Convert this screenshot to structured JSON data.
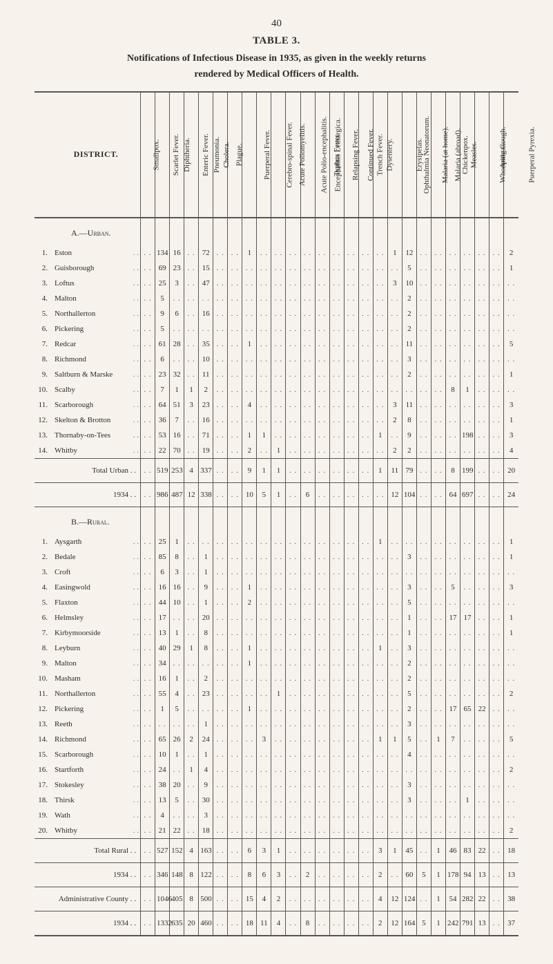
{
  "meta": {
    "page_number": "40",
    "table_label": "TABLE 3.",
    "title_line1": "Notifications of Infectious Disease in 1935, as given in the weekly returns",
    "title_line2": "rendered by Medical Officers of Health.",
    "district_head": "DISTRICT."
  },
  "columns": [
    "Smallpox.",
    "Scarlet Fever.",
    "Diphtheria.",
    "Enteric Fever.",
    "Pneumonia.",
    "Cholera.",
    "Plague.",
    "Puerperal Fever.",
    "Cerebro-spinal Fever.",
    "Acute Poliomyelitis.",
    "Acute Polio-encephalitis.",
    "Encephalitis Lethargica.",
    "Typhus Fever.",
    "Relapsing Fever.",
    "Continued Fever.",
    "Trench Fever.",
    "Dysentery.",
    "Ophthalmia Neonatorum.",
    "Erysipelas.",
    "Malaria (at home).",
    "Malaria (abroad).",
    "Chickenpox.",
    "Measles.",
    "Whooping Cough.",
    "Anthrax.",
    "Puerperal Pyrexia."
  ],
  "section_a": {
    "heading": "A.—Urban.",
    "rows": [
      {
        "n": "1.",
        "name": "Eston",
        "v": [
          "",
          "134",
          "16",
          "",
          "72",
          "",
          "",
          "1",
          "",
          "",
          "",
          "",
          "",
          "",
          "",
          "",
          "",
          "1",
          "12",
          "",
          "",
          "",
          "",
          "",
          "",
          "2"
        ]
      },
      {
        "n": "2.",
        "name": "Guisborough",
        "v": [
          "",
          "69",
          "23",
          "",
          "15",
          "",
          "",
          "",
          "",
          "",
          "",
          "",
          "",
          "",
          "",
          "",
          "",
          "",
          "5",
          "",
          "",
          "",
          "",
          "",
          "",
          "1"
        ]
      },
      {
        "n": "3.",
        "name": "Loftus",
        "v": [
          "",
          "25",
          "3",
          "",
          "47",
          "",
          "",
          "",
          "",
          "",
          "",
          "",
          "",
          "",
          "",
          "",
          "",
          "3",
          "10",
          "",
          "",
          "",
          "",
          "",
          "",
          ""
        ]
      },
      {
        "n": "4.",
        "name": "Malton",
        "v": [
          "",
          "5",
          "",
          "",
          "",
          "",
          "",
          "",
          "",
          "",
          "",
          "",
          "",
          "",
          "",
          "",
          "",
          "",
          "2",
          "",
          "",
          "",
          "",
          "",
          "",
          ""
        ]
      },
      {
        "n": "5.",
        "name": "Northallerton",
        "v": [
          "",
          "9",
          "6",
          "",
          "16",
          "",
          "",
          "",
          "",
          "",
          "",
          "",
          "",
          "",
          "",
          "",
          "",
          "",
          "2",
          "",
          "",
          "",
          "",
          "",
          "",
          ""
        ]
      },
      {
        "n": "6.",
        "name": "Pickering",
        "v": [
          "",
          "5",
          "",
          "",
          "",
          "",
          "",
          "",
          "",
          "",
          "",
          "",
          "",
          "",
          "",
          "",
          "",
          "",
          "2",
          "",
          "",
          "",
          "",
          "",
          "",
          ""
        ]
      },
      {
        "n": "7.",
        "name": "Redcar",
        "v": [
          "",
          "61",
          "28",
          "",
          "35",
          "",
          "",
          "1",
          "",
          "",
          "",
          "",
          "",
          "",
          "",
          "",
          "",
          "",
          "11",
          "",
          "",
          "",
          "",
          "",
          "",
          "5"
        ]
      },
      {
        "n": "8.",
        "name": "Richmond",
        "v": [
          "",
          "6",
          "",
          "",
          "10",
          "",
          "",
          "",
          "",
          "",
          "",
          "",
          "",
          "",
          "",
          "",
          "",
          "",
          "3",
          "",
          "",
          "",
          "",
          "",
          "",
          ""
        ]
      },
      {
        "n": "9.",
        "name": "Saltburn & Marske",
        "v": [
          "",
          "23",
          "32",
          "",
          "11",
          "",
          "",
          "",
          "",
          "",
          "",
          "",
          "",
          "",
          "",
          "",
          "",
          "",
          "2",
          "",
          "",
          "",
          "",
          "",
          "",
          "1"
        ]
      },
      {
        "n": "10.",
        "name": "Scalby",
        "v": [
          "",
          "7",
          "1",
          "1",
          "2",
          "",
          "",
          "",
          "",
          "",
          "",
          "",
          "",
          "",
          "",
          "",
          "",
          "",
          "",
          "",
          "",
          "8",
          "1",
          "",
          "",
          ""
        ]
      },
      {
        "n": "11.",
        "name": "Scarborough",
        "v": [
          "",
          "64",
          "51",
          "3",
          "23",
          "",
          "",
          "4",
          "",
          "",
          "",
          "",
          "",
          "",
          "",
          "",
          "",
          "3",
          "11",
          "",
          "",
          "",
          "",
          "",
          "",
          "3"
        ]
      },
      {
        "n": "12.",
        "name": "Skelton & Brotton",
        "v": [
          "",
          "36",
          "7",
          "",
          "16",
          "",
          "",
          "",
          "",
          "",
          "",
          "",
          "",
          "",
          "",
          "",
          "",
          "2",
          "8",
          "",
          "",
          "",
          "",
          "",
          "",
          "1"
        ]
      },
      {
        "n": "13.",
        "name": "Thornaby-on-Tees",
        "v": [
          "",
          "53",
          "16",
          "",
          "71",
          "",
          "",
          "1",
          "1",
          "",
          "",
          "",
          "",
          "",
          "",
          "",
          "1",
          "",
          "9",
          "",
          "",
          "",
          "198",
          "",
          "",
          "3"
        ]
      },
      {
        "n": "14.",
        "name": "Whitby",
        "v": [
          "",
          "22",
          "70",
          "",
          "19",
          "",
          "",
          "2",
          "",
          "1",
          "",
          "",
          "",
          "",
          "",
          "",
          "",
          "2",
          "2",
          "",
          "",
          "",
          "",
          "",
          "",
          "4"
        ]
      }
    ],
    "total": {
      "label": "Total Urban",
      "v": [
        "",
        "519",
        "253",
        "4",
        "337",
        "",
        "",
        "9",
        "1",
        "1",
        "",
        "",
        "",
        "",
        "",
        "",
        "1",
        "11",
        "79",
        "",
        "",
        "8",
        "199",
        "",
        "",
        "20"
      ]
    },
    "year1934": {
      "label": "1934",
      "v": [
        "",
        "986",
        "487",
        "12",
        "338",
        "",
        "",
        "10",
        "5",
        "1",
        "",
        "6",
        "",
        "",
        "",
        "",
        "",
        "12",
        "104",
        "",
        "",
        "64",
        "697",
        "",
        "",
        "24"
      ]
    }
  },
  "section_b": {
    "heading": "B.—Rural.",
    "rows": [
      {
        "n": "1.",
        "name": "Aysgarth",
        "v": [
          "",
          "25",
          "1",
          "",
          "",
          "",
          "",
          "",
          "",
          "",
          "",
          "",
          "",
          "",
          "",
          "",
          "1",
          "",
          "",
          "",
          "",
          "",
          "",
          "",
          "",
          "1"
        ]
      },
      {
        "n": "2.",
        "name": "Bedale",
        "v": [
          "",
          "85",
          "8",
          "",
          "1",
          "",
          "",
          "",
          "",
          "",
          "",
          "",
          "",
          "",
          "",
          "",
          "",
          "",
          "3",
          "",
          "",
          "",
          "",
          "",
          "",
          "1"
        ]
      },
      {
        "n": "3.",
        "name": "Croft",
        "v": [
          "",
          "6",
          "3",
          "",
          "1",
          "",
          "",
          "",
          "",
          "",
          "",
          "",
          "",
          "",
          "",
          "",
          "",
          "",
          "",
          "",
          "",
          "",
          "",
          "",
          "",
          ""
        ]
      },
      {
        "n": "4.",
        "name": "Easingwold",
        "v": [
          "",
          "16",
          "16",
          "",
          "9",
          "",
          "",
          "1",
          "",
          "",
          "",
          "",
          "",
          "",
          "",
          "",
          "",
          "",
          "3",
          "",
          "",
          "5",
          "",
          "",
          "",
          "3"
        ]
      },
      {
        "n": "5.",
        "name": "Flaxton",
        "v": [
          "",
          "44",
          "10",
          "",
          "1",
          "",
          "",
          "2",
          "",
          "",
          "",
          "",
          "",
          "",
          "",
          "",
          "",
          "",
          "5",
          "",
          "",
          "",
          "",
          "",
          "",
          ""
        ]
      },
      {
        "n": "6.",
        "name": "Helmsley",
        "v": [
          "",
          "17",
          "",
          "",
          "20",
          "",
          "",
          "",
          "",
          "",
          "",
          "",
          "",
          "",
          "",
          "",
          "",
          "",
          "1",
          "",
          "",
          "17",
          "17",
          "",
          "",
          "1"
        ]
      },
      {
        "n": "7.",
        "name": "Kirbymoorside",
        "v": [
          "",
          "13",
          "1",
          "",
          "8",
          "",
          "",
          "",
          "",
          "",
          "",
          "",
          "",
          "",
          "",
          "",
          "",
          "",
          "1",
          "",
          "",
          "",
          "",
          "",
          "",
          "1"
        ]
      },
      {
        "n": "8.",
        "name": "Leyburn",
        "v": [
          "",
          "40",
          "29",
          "1",
          "8",
          "",
          "",
          "1",
          "",
          "",
          "",
          "",
          "",
          "",
          "",
          "",
          "1",
          "",
          "3",
          "",
          "",
          "",
          "",
          "",
          "",
          ""
        ]
      },
      {
        "n": "9.",
        "name": "Malton",
        "v": [
          "",
          "34",
          "",
          "",
          "",
          "",
          "",
          "1",
          "",
          "",
          "",
          "",
          "",
          "",
          "",
          "",
          "",
          "",
          "2",
          "",
          "",
          "",
          "",
          "",
          "",
          ""
        ]
      },
      {
        "n": "10.",
        "name": "Masham",
        "v": [
          "",
          "16",
          "1",
          "",
          "2",
          "",
          "",
          "",
          "",
          "",
          "",
          "",
          "",
          "",
          "",
          "",
          "",
          "",
          "2",
          "",
          "",
          "",
          "",
          "",
          "",
          ""
        ]
      },
      {
        "n": "11.",
        "name": "Northallerton",
        "v": [
          "",
          "55",
          "4",
          "",
          "23",
          "",
          "",
          "",
          "",
          "1",
          "",
          "",
          "",
          "",
          "",
          "",
          "",
          "",
          "5",
          "",
          "",
          "",
          "",
          "",
          "",
          "2"
        ]
      },
      {
        "n": "12.",
        "name": "Pickering",
        "v": [
          "",
          "1",
          "5",
          "",
          "",
          "",
          "",
          "1",
          "",
          "",
          "",
          "",
          "",
          "",
          "",
          "",
          "",
          "",
          "2",
          "",
          "",
          "17",
          "65",
          "22",
          "",
          ""
        ]
      },
      {
        "n": "13.",
        "name": "Reeth",
        "v": [
          "",
          "",
          "",
          "",
          "1",
          "",
          "",
          "",
          "",
          "",
          "",
          "",
          "",
          "",
          "",
          "",
          "",
          "",
          "3",
          "",
          "",
          "",
          "",
          "",
          "",
          ""
        ]
      },
      {
        "n": "14.",
        "name": "Richmond",
        "v": [
          "",
          "65",
          "26",
          "2",
          "24",
          "",
          "",
          "",
          "3",
          "",
          "",
          "",
          "",
          "",
          "",
          "",
          "1",
          "1",
          "5",
          "",
          "1",
          "7",
          "",
          "",
          "",
          "5"
        ]
      },
      {
        "n": "15.",
        "name": "Scarborough",
        "v": [
          "",
          "10",
          "1",
          "",
          "1",
          "",
          "",
          "",
          "",
          "",
          "",
          "",
          "",
          "",
          "",
          "",
          "",
          "",
          "4",
          "",
          "",
          "",
          "",
          "",
          "",
          ""
        ]
      },
      {
        "n": "16.",
        "name": "Startforth",
        "v": [
          "",
          "24",
          "",
          "1",
          "4",
          "",
          "",
          "",
          "",
          "",
          "",
          "",
          "",
          "",
          "",
          "",
          "",
          "",
          "",
          "",
          "",
          "",
          "",
          "",
          "",
          "2"
        ]
      },
      {
        "n": "17.",
        "name": "Stokesley",
        "v": [
          "",
          "38",
          "20",
          "",
          "9",
          "",
          "",
          "",
          "",
          "",
          "",
          "",
          "",
          "",
          "",
          "",
          "",
          "",
          "3",
          "",
          "",
          "",
          "",
          "",
          "",
          ""
        ]
      },
      {
        "n": "18.",
        "name": "Thirsk",
        "v": [
          "",
          "13",
          "5",
          "",
          "30",
          "",
          "",
          "",
          "",
          "",
          "",
          "",
          "",
          "",
          "",
          "",
          "",
          "",
          "3",
          "",
          "",
          "",
          "1",
          "",
          "",
          ""
        ]
      },
      {
        "n": "19.",
        "name": "Wath",
        "v": [
          "",
          "4",
          "",
          "",
          "3",
          "",
          "",
          "",
          "",
          "",
          "",
          "",
          "",
          "",
          "",
          "",
          "",
          "",
          "",
          "",
          "",
          "",
          "",
          "",
          "",
          ""
        ]
      },
      {
        "n": "20.",
        "name": "Whitby",
        "v": [
          "",
          "21",
          "22",
          "",
          "18",
          "",
          "",
          "",
          "",
          "",
          "",
          "",
          "",
          "",
          "",
          "",
          "",
          "",
          "",
          "",
          "",
          "",
          "",
          "",
          "",
          "2"
        ]
      }
    ],
    "total": {
      "label": "Total Rural",
      "v": [
        "",
        "527",
        "152",
        "4",
        "163",
        "",
        "",
        "6",
        "3",
        "1",
        "",
        "",
        "",
        "",
        "",
        "",
        "3",
        "1",
        "45",
        "",
        "1",
        "46",
        "83",
        "22",
        "",
        "18"
      ]
    },
    "year1934": {
      "label": "1934",
      "v": [
        "",
        "346",
        "148",
        "8",
        "122",
        "",
        "",
        "8",
        "6",
        "3",
        "",
        "2",
        "",
        "",
        "",
        "",
        "2",
        "",
        "60",
        "5",
        "1",
        "178",
        "94",
        "13",
        "",
        "13"
      ]
    }
  },
  "admin": {
    "county": {
      "label": "Administrative County",
      "v": [
        "",
        "1046",
        "405",
        "8",
        "500",
        "",
        "",
        "15",
        "4",
        "2",
        "",
        "",
        "",
        "",
        "",
        "",
        "4",
        "12",
        "124",
        "",
        "1",
        "54",
        "282",
        "22",
        "",
        "38"
      ]
    },
    "year1934": {
      "label": "1934",
      "v": [
        "",
        "1332",
        "635",
        "20",
        "460",
        "",
        "",
        "18",
        "11",
        "4",
        "",
        "8",
        "",
        "",
        "",
        "",
        "2",
        "12",
        "164",
        "5",
        "1",
        "242",
        "791",
        "13",
        "",
        "37"
      ]
    }
  },
  "style": {
    "bg": "#f7f3ec",
    "text": "#2a2a2a",
    "border": "#555555",
    "font": "Times New Roman"
  }
}
